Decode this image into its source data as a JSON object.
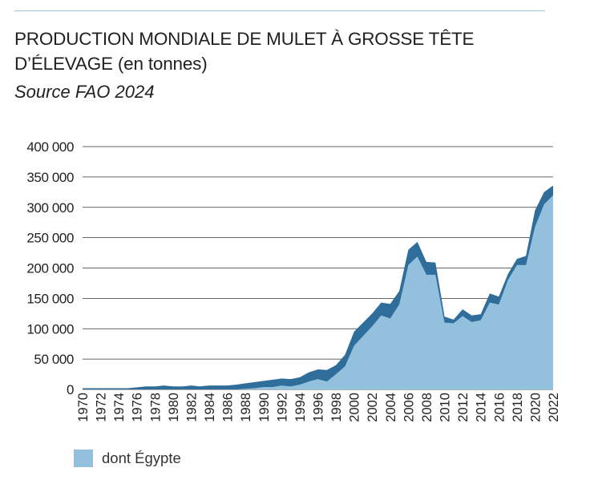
{
  "title_line1": "PRODUCTION MONDIALE DE MULET À GROSSE TÊTE",
  "title_line2": "D’ÉLEVAGE (en tonnes)",
  "source": "Source FAO 2024",
  "colors": {
    "total": "#2f6d9a",
    "egypt": "#93c0dc",
    "grid": "#333333",
    "rule": "#9cc3cf"
  },
  "chart_data": {
    "type": "area",
    "title": "PRODUCTION MONDIALE DE MULET À GROSSE TÊTE D’ÉLEVAGE (en tonnes)",
    "ylim": [
      0,
      400000
    ],
    "yticks": [
      0,
      50000,
      100000,
      150000,
      200000,
      250000,
      300000,
      350000,
      400000
    ],
    "ytick_labels": [
      "0",
      "50 000",
      "100 000",
      "150 000",
      "200 000",
      "250 000",
      "300 000",
      "350 000",
      "400 000"
    ],
    "xlim": [
      1970,
      2022
    ],
    "xticks": [
      1970,
      1972,
      1974,
      1976,
      1978,
      1980,
      1982,
      1984,
      1986,
      1988,
      1990,
      1992,
      1994,
      1996,
      1998,
      2000,
      2002,
      2004,
      2006,
      2008,
      2010,
      2012,
      2014,
      2016,
      2018,
      2020,
      2022
    ],
    "grid": "horizontal",
    "legend_position": "bottom-left",
    "x": [
      1970,
      1971,
      1972,
      1973,
      1974,
      1975,
      1976,
      1977,
      1978,
      1979,
      1980,
      1981,
      1982,
      1983,
      1984,
      1985,
      1986,
      1987,
      1988,
      1989,
      1990,
      1991,
      1992,
      1993,
      1994,
      1995,
      1996,
      1997,
      1998,
      1999,
      2000,
      2001,
      2002,
      2003,
      2004,
      2005,
      2006,
      2007,
      2008,
      2009,
      2010,
      2011,
      2012,
      2013,
      2014,
      2015,
      2016,
      2017,
      2018,
      2019,
      2020,
      2021,
      2022
    ],
    "series": [
      {
        "key": "total",
        "values": [
          2000,
          2000,
          2000,
          2000,
          2000,
          2000,
          3500,
          5000,
          5000,
          6500,
          5000,
          5000,
          6500,
          5000,
          6500,
          6500,
          6500,
          8000,
          10000,
          12000,
          14000,
          16000,
          18000,
          17000,
          20000,
          28000,
          33000,
          32000,
          40000,
          57000,
          95000,
          110000,
          125000,
          143000,
          141000,
          162000,
          230000,
          243000,
          210000,
          209000,
          120000,
          115000,
          132000,
          122000,
          124000,
          158000,
          153000,
          190000,
          215000,
          220000,
          295000,
          325000,
          336000
        ]
      },
      {
        "key": "egypt",
        "name": "dont Égypte",
        "values": [
          0,
          0,
          0,
          0,
          0,
          0,
          0,
          0,
          0,
          0,
          0,
          0,
          0,
          0,
          0,
          0,
          0,
          0,
          1000,
          2000,
          4000,
          4000,
          6500,
          5000,
          8000,
          13000,
          17000,
          13000,
          25000,
          38000,
          72000,
          88000,
          104000,
          122000,
          117000,
          140000,
          205000,
          219000,
          189000,
          189000,
          110000,
          109000,
          121000,
          111000,
          114000,
          143000,
          140000,
          180000,
          205000,
          205000,
          268000,
          305000,
          320000
        ]
      }
    ]
  }
}
